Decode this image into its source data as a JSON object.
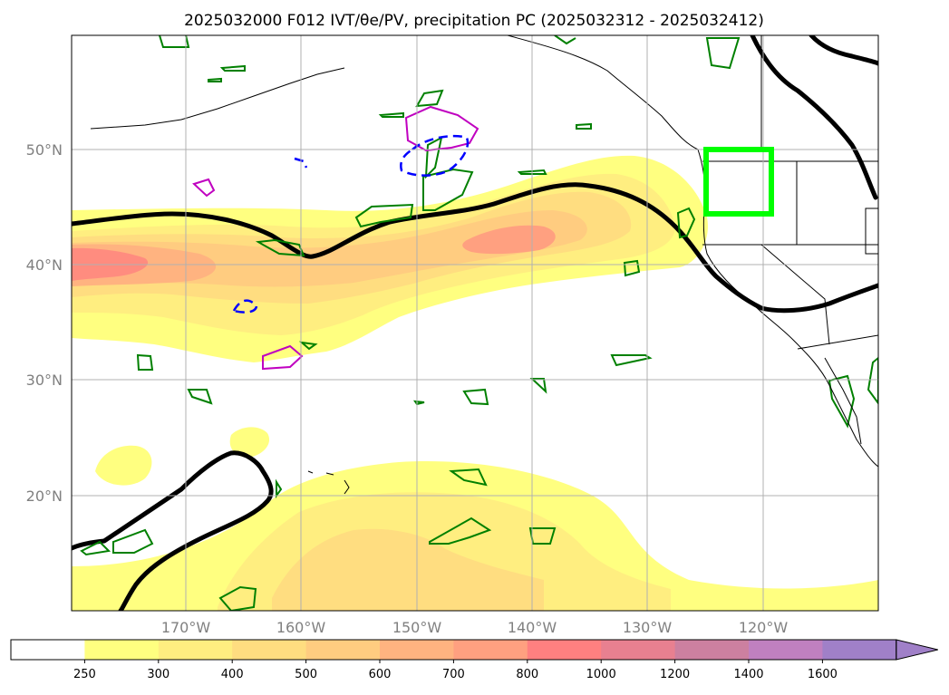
{
  "title": "2025032000 F012 IVT/θe/PV, precipitation PC (2025032312 - 2025032412)",
  "map": {
    "lat_labels": [
      "50°N",
      "40°N",
      "30°N",
      "20°N"
    ],
    "lon_labels": [
      "170°W",
      "160°W",
      "150°W",
      "140°W",
      "130°W",
      "120°W"
    ],
    "extent": {
      "lon": [
        -180,
        -110
      ],
      "lat": [
        10,
        60
      ]
    },
    "highlight_box": {
      "lon": [
        -125,
        -119.5
      ],
      "lat": [
        44.5,
        50
      ],
      "color": "#00ff00"
    },
    "contour_colors": {
      "ivt_line": "#000000",
      "green_pv": "#008000",
      "magenta": "#c000c0",
      "blue_dashed": "#0000ff"
    }
  },
  "colorbar": {
    "levels": [
      "250",
      "300",
      "400",
      "500",
      "600",
      "700",
      "800",
      "1000",
      "1200",
      "1400",
      "1600"
    ],
    "colors": [
      "#ffffff",
      "#ffff80",
      "#ffee80",
      "#ffdd80",
      "#ffcc80",
      "#ffb380",
      "#ffa080",
      "#ff8080",
      "#e88090",
      "#cc80a0",
      "#c080c0",
      "#a080c8"
    ],
    "extend": "max"
  }
}
